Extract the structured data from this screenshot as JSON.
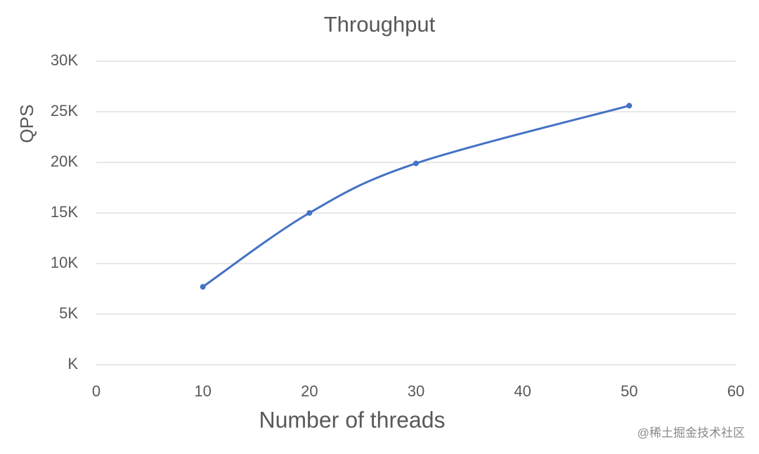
{
  "chart_data": {
    "type": "line",
    "title": "Throughput",
    "x_label": "Number of threads",
    "y_label": "QPS",
    "x": [
      10,
      20,
      30,
      50
    ],
    "series": [
      {
        "name": "QPS",
        "color": "#4472c4",
        "values": [
          7700,
          15000,
          19900,
          25600
        ]
      }
    ],
    "smooth": true,
    "xlim": [
      0,
      60
    ],
    "xticks": [
      0,
      10,
      20,
      30,
      40,
      50,
      60
    ],
    "ylim": [
      0,
      30000
    ],
    "yticks": [
      {
        "value": 0,
        "label": "K"
      },
      {
        "value": 5000,
        "label": "5K"
      },
      {
        "value": 10000,
        "label": "10K"
      },
      {
        "value": 15000,
        "label": "15K"
      },
      {
        "value": 20000,
        "label": "20K"
      },
      {
        "value": 25000,
        "label": "25K"
      },
      {
        "value": 30000,
        "label": "30K"
      }
    ],
    "grid": true,
    "watermark": "@稀土掘金技术社区"
  }
}
